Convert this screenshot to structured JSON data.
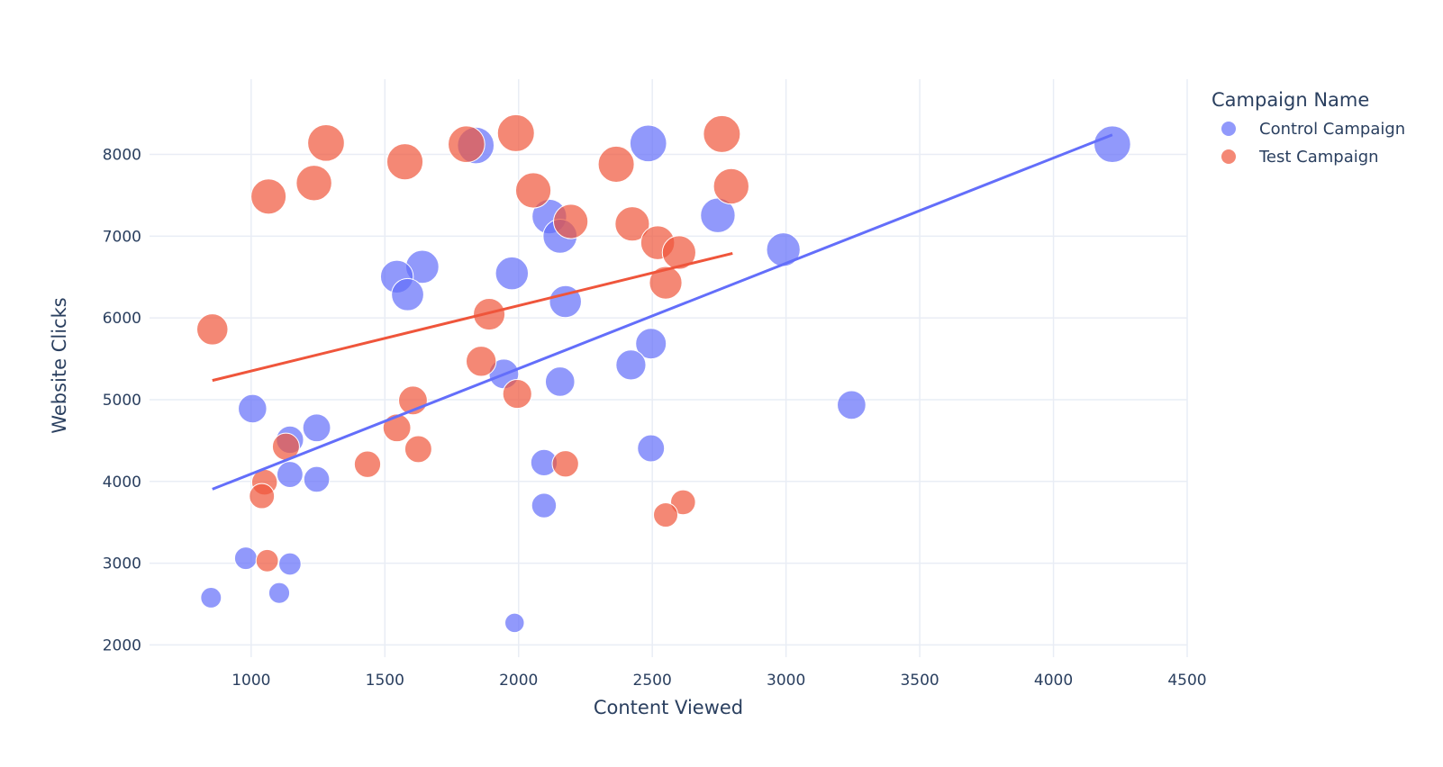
{
  "chart_data": {
    "type": "scatter",
    "title": "",
    "xlabel": "Content Viewed",
    "ylabel": "Website Clicks",
    "xlim": [
      620,
      4500
    ],
    "ylim": [
      1850,
      8920
    ],
    "x_ticks": [
      1000,
      1500,
      2000,
      2500,
      3000,
      3500,
      4000,
      4500
    ],
    "y_ticks": [
      2000,
      3000,
      4000,
      5000,
      6000,
      7000,
      8000
    ],
    "grid": true,
    "legend": {
      "title": "Campaign Name",
      "position": "top-right"
    },
    "series": [
      {
        "name": "Control Campaign",
        "color": "#636efa",
        "trendline": [
          [
            855,
            3905
          ],
          [
            4220,
            8240
          ]
        ],
        "points": [
          {
            "x": 850,
            "y": 2577,
            "size": 2577
          },
          {
            "x": 980,
            "y": 3060,
            "size": 3060
          },
          {
            "x": 1105,
            "y": 2635,
            "size": 2635
          },
          {
            "x": 1145,
            "y": 2990,
            "size": 2990
          },
          {
            "x": 1005,
            "y": 4890,
            "size": 4890
          },
          {
            "x": 1145,
            "y": 4510,
            "size": 4510
          },
          {
            "x": 1145,
            "y": 4085,
            "size": 4085
          },
          {
            "x": 1245,
            "y": 4655,
            "size": 4655
          },
          {
            "x": 1245,
            "y": 4025,
            "size": 4025
          },
          {
            "x": 1545,
            "y": 6505,
            "size": 6505
          },
          {
            "x": 1585,
            "y": 6285,
            "size": 6285
          },
          {
            "x": 1640,
            "y": 6625,
            "size": 6625
          },
          {
            "x": 1840,
            "y": 8110,
            "size": 8110
          },
          {
            "x": 1945,
            "y": 5315,
            "size": 5315
          },
          {
            "x": 1975,
            "y": 6545,
            "size": 6545
          },
          {
            "x": 1985,
            "y": 2270,
            "size": 2270
          },
          {
            "x": 2095,
            "y": 4230,
            "size": 4230
          },
          {
            "x": 2095,
            "y": 3705,
            "size": 3705
          },
          {
            "x": 2115,
            "y": 7240,
            "size": 7240
          },
          {
            "x": 2155,
            "y": 5220,
            "size": 5220
          },
          {
            "x": 2155,
            "y": 7000,
            "size": 7000
          },
          {
            "x": 2175,
            "y": 6200,
            "size": 6200
          },
          {
            "x": 2420,
            "y": 5425,
            "size": 5425
          },
          {
            "x": 2485,
            "y": 8135,
            "size": 8135
          },
          {
            "x": 2495,
            "y": 5685,
            "size": 5685
          },
          {
            "x": 2495,
            "y": 4405,
            "size": 4405
          },
          {
            "x": 2745,
            "y": 7255,
            "size": 7255
          },
          {
            "x": 2990,
            "y": 6835,
            "size": 6835
          },
          {
            "x": 3245,
            "y": 4935,
            "size": 4935
          },
          {
            "x": 4220,
            "y": 8125,
            "size": 8125
          }
        ]
      },
      {
        "name": "Test Campaign",
        "color": "#ef553b",
        "trendline": [
          [
            855,
            5235
          ],
          [
            2800,
            6790
          ]
        ],
        "points": [
          {
            "x": 855,
            "y": 5860,
            "size": 5860
          },
          {
            "x": 1065,
            "y": 7485,
            "size": 7485
          },
          {
            "x": 1050,
            "y": 3990,
            "size": 3990
          },
          {
            "x": 1040,
            "y": 3820,
            "size": 3820
          },
          {
            "x": 1060,
            "y": 3030,
            "size": 3030
          },
          {
            "x": 1130,
            "y": 4425,
            "size": 4425
          },
          {
            "x": 1235,
            "y": 7650,
            "size": 7650
          },
          {
            "x": 1280,
            "y": 8140,
            "size": 8140
          },
          {
            "x": 1435,
            "y": 4210,
            "size": 4210
          },
          {
            "x": 1545,
            "y": 4655,
            "size": 4655
          },
          {
            "x": 1575,
            "y": 7910,
            "size": 7910
          },
          {
            "x": 1605,
            "y": 4990,
            "size": 4990
          },
          {
            "x": 1625,
            "y": 4395,
            "size": 4395
          },
          {
            "x": 1805,
            "y": 8125,
            "size": 8125
          },
          {
            "x": 1860,
            "y": 5470,
            "size": 5470
          },
          {
            "x": 1890,
            "y": 6045,
            "size": 6045
          },
          {
            "x": 1995,
            "y": 5070,
            "size": 5070
          },
          {
            "x": 1990,
            "y": 8260,
            "size": 8260
          },
          {
            "x": 2055,
            "y": 7560,
            "size": 7560
          },
          {
            "x": 2175,
            "y": 4215,
            "size": 4215
          },
          {
            "x": 2195,
            "y": 7180,
            "size": 7180
          },
          {
            "x": 2365,
            "y": 7880,
            "size": 7880
          },
          {
            "x": 2425,
            "y": 7150,
            "size": 7150
          },
          {
            "x": 2520,
            "y": 6920,
            "size": 6920
          },
          {
            "x": 2550,
            "y": 6430,
            "size": 6430
          },
          {
            "x": 2550,
            "y": 3590,
            "size": 3590
          },
          {
            "x": 2600,
            "y": 6800,
            "size": 6800
          },
          {
            "x": 2615,
            "y": 3745,
            "size": 3745
          },
          {
            "x": 2760,
            "y": 8250,
            "size": 8250
          },
          {
            "x": 2795,
            "y": 7610,
            "size": 7610
          }
        ]
      }
    ]
  }
}
